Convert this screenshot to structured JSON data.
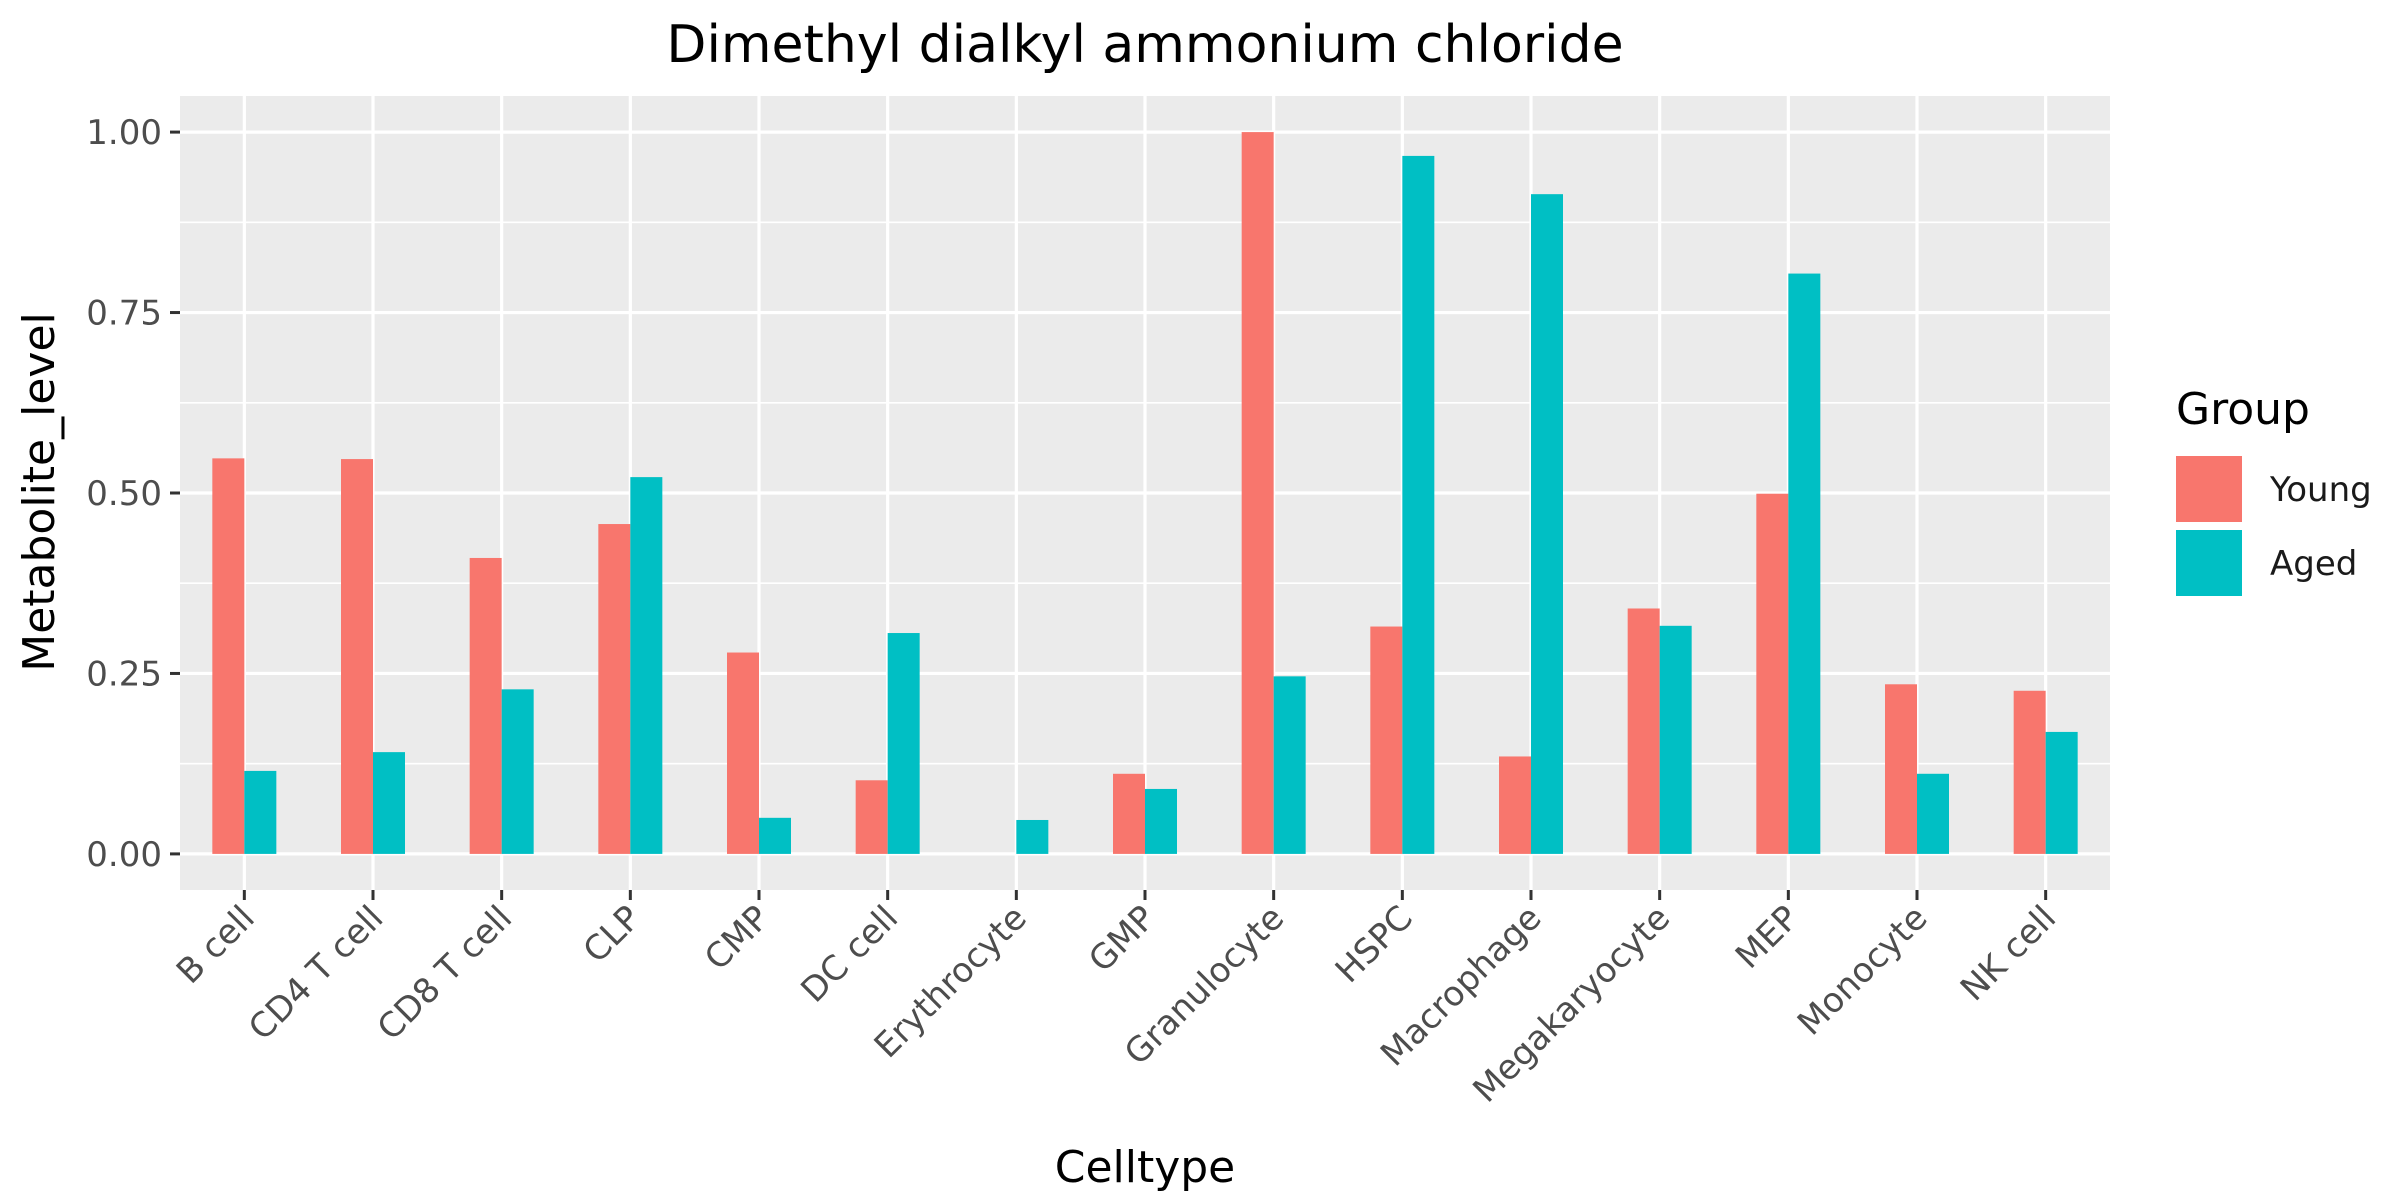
{
  "chart_data": {
    "type": "bar",
    "title": "Dimethyl dialkyl ammonium chloride",
    "xlabel": "Celltype",
    "ylabel": "Metabolite_level",
    "categories": [
      "B cell",
      "CD4 T cell",
      "CD8 T cell",
      "CLP",
      "CMP",
      "DC cell",
      "Erythrocyte",
      "GMP",
      "Granulocyte",
      "HSPC",
      "Macrophage",
      "Megakaryocyte",
      "MEP",
      "Monocyte",
      "NK cell"
    ],
    "series": [
      {
        "name": "Young",
        "color": "#F8766D",
        "values": [
          0.548,
          0.547,
          0.41,
          0.457,
          0.279,
          0.102,
          0.0,
          0.111,
          1.0,
          0.315,
          0.135,
          0.34,
          0.499,
          0.235,
          0.226
        ]
      },
      {
        "name": "Aged",
        "color": "#00BFC4",
        "values": [
          0.115,
          0.141,
          0.228,
          0.522,
          0.05,
          0.306,
          0.047,
          0.09,
          0.246,
          0.967,
          0.914,
          0.316,
          0.804,
          0.111,
          0.169
        ]
      }
    ],
    "ylim": [
      -0.05,
      1.05
    ],
    "yticks": [
      0.0,
      0.25,
      0.5,
      0.75,
      1.0
    ],
    "ytick_labels": [
      "0.00",
      "0.25",
      "0.50",
      "0.75",
      "1.00"
    ],
    "grid": true,
    "legend": {
      "title": "Group",
      "position": "right"
    },
    "panel_background": "#EBEBEB",
    "grid_color": "#FFFFFF"
  }
}
